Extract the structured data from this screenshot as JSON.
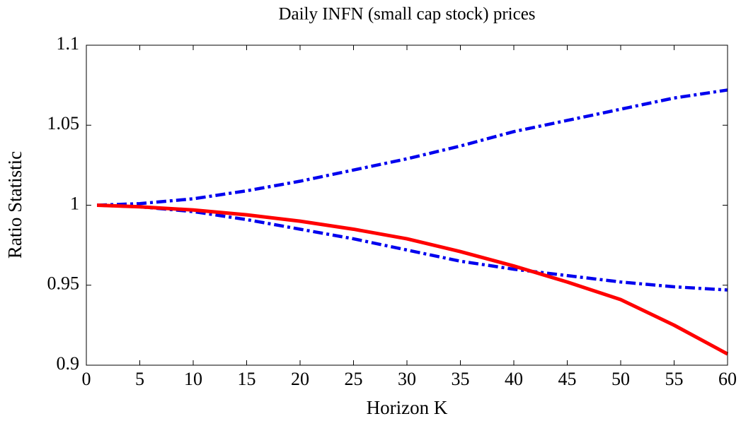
{
  "chart_data": {
    "type": "line",
    "title": "Daily INFN (small cap stock) prices",
    "x_label": "Horizon K",
    "y_label": "Ratio Statistic",
    "x": [
      1,
      5,
      10,
      15,
      20,
      25,
      30,
      35,
      40,
      45,
      50,
      55,
      60
    ],
    "series": [
      {
        "color": "#0000ee",
        "style": "dashdot",
        "values": [
          1.0,
          1.001,
          1.004,
          1.009,
          1.015,
          1.022,
          1.029,
          1.037,
          1.046,
          1.053,
          1.06,
          1.067,
          1.072
        ]
      },
      {
        "color": "#0000ee",
        "style": "dashdot",
        "values": [
          1.0,
          0.999,
          0.996,
          0.991,
          0.985,
          0.979,
          0.972,
          0.965,
          0.96,
          0.956,
          0.952,
          0.949,
          0.947
        ]
      },
      {
        "color": "#ff0000",
        "style": "solid",
        "values": [
          1.0,
          0.999,
          0.997,
          0.994,
          0.99,
          0.985,
          0.979,
          0.971,
          0.962,
          0.952,
          0.941,
          0.925,
          0.907
        ]
      }
    ],
    "xlim": [
      0,
      60
    ],
    "xticks": [
      0,
      5,
      10,
      15,
      20,
      25,
      30,
      35,
      40,
      45,
      50,
      55,
      60
    ],
    "ylim": [
      0.9,
      1.1
    ],
    "yticks": [
      0.9,
      0.95,
      1,
      1.05,
      1.1
    ],
    "grid": false
  }
}
